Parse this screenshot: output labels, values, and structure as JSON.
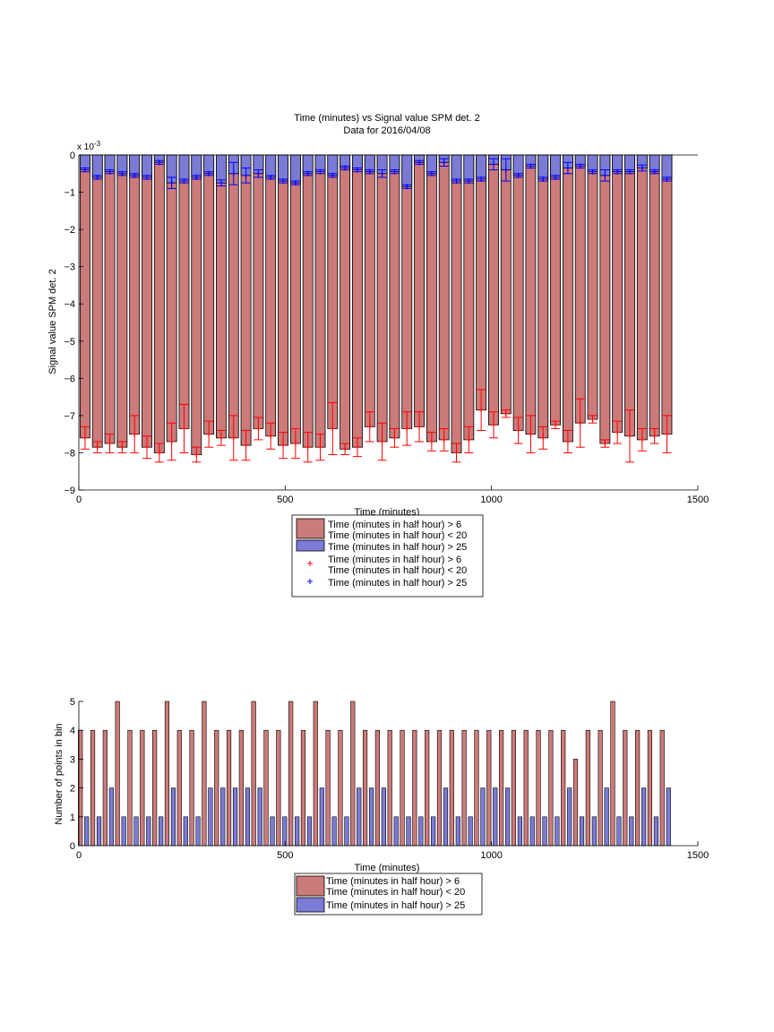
{
  "chart_data": [
    {
      "type": "bar",
      "title": "Time (minutes) vs Signal value SPM det. 2",
      "subtitle": "Data for 2016/04/08",
      "xlabel": "Time (minutes)",
      "ylabel": "Signal value SPM det. 2",
      "exponent_label": "x 10",
      "exponent_power": "-3",
      "xlim": [
        0,
        1500
      ],
      "ylim": [
        -9,
        0
      ],
      "xticks": [
        "0",
        "500",
        "1000",
        "1500"
      ],
      "yticks": [
        "0",
        "−1",
        "−2",
        "−3",
        "−4",
        "−5",
        "−6",
        "−7",
        "−8",
        "−9"
      ],
      "ytick_values": [
        0,
        -1,
        -2,
        -3,
        -4,
        -5,
        -6,
        -7,
        -8,
        -9
      ],
      "grid": false,
      "legend_position": "below",
      "x": [
        15,
        45,
        75,
        105,
        135,
        165,
        195,
        225,
        255,
        285,
        315,
        345,
        375,
        405,
        435,
        465,
        495,
        525,
        555,
        585,
        615,
        645,
        675,
        705,
        735,
        765,
        795,
        825,
        855,
        885,
        915,
        945,
        975,
        1005,
        1035,
        1065,
        1095,
        1125,
        1155,
        1185,
        1215,
        1245,
        1275,
        1305,
        1335,
        1365,
        1395,
        1425
      ],
      "series": [
        {
          "name": "Time (minutes in half hour) > 6\nTime (minutes in half hour) < 20",
          "color": "#cc7a7a",
          "marker_color": "#ff0000",
          "marker": "+",
          "values": [
            -7.6,
            -7.85,
            -7.75,
            -7.85,
            -7.5,
            -7.85,
            -8.0,
            -7.7,
            -7.35,
            -8.05,
            -7.5,
            -7.6,
            -7.6,
            -7.8,
            -7.35,
            -7.55,
            -7.8,
            -7.75,
            -7.85,
            -7.85,
            -7.35,
            -7.9,
            -7.85,
            -7.3,
            -7.7,
            -7.6,
            -7.35,
            -7.3,
            -7.7,
            -7.65,
            -8.0,
            -7.65,
            -6.85,
            -7.25,
            -6.95,
            -7.4,
            -7.5,
            -7.6,
            -7.25,
            -7.7,
            -7.2,
            -7.1,
            -7.75,
            -7.45,
            -7.55,
            -7.65,
            -7.55,
            -7.5
          ],
          "errors": [
            0.3,
            0.15,
            0.25,
            0.15,
            0.5,
            0.3,
            0.25,
            0.5,
            0.65,
            0.2,
            0.35,
            0.2,
            0.6,
            0.4,
            0.3,
            0.35,
            0.35,
            0.4,
            0.4,
            0.35,
            0.7,
            0.15,
            0.25,
            0.4,
            0.5,
            0.25,
            0.45,
            0.4,
            0.25,
            0.3,
            0.25,
            0.35,
            0.55,
            0.35,
            0.1,
            0.35,
            0.5,
            0.3,
            0.1,
            0.3,
            0.65,
            0.1,
            0.1,
            0.3,
            0.7,
            0.3,
            0.2,
            0.5
          ]
        },
        {
          "name": "Time (minutes in half hour) > 25",
          "color": "#7b7bd6",
          "marker_color": "#0000ff",
          "marker": "+",
          "values": [
            -0.4,
            -0.6,
            -0.45,
            -0.5,
            -0.55,
            -0.6,
            -0.2,
            -0.75,
            -0.7,
            -0.6,
            -0.5,
            -0.75,
            -0.5,
            -0.55,
            -0.5,
            -0.6,
            -0.7,
            -0.75,
            -0.5,
            -0.45,
            -0.55,
            -0.35,
            -0.4,
            -0.45,
            -0.5,
            -0.45,
            -0.85,
            -0.2,
            -0.5,
            -0.2,
            -0.7,
            -0.7,
            -0.65,
            -0.25,
            -0.4,
            -0.55,
            -0.3,
            -0.65,
            -0.6,
            -0.35,
            -0.3,
            -0.45,
            -0.55,
            -0.45,
            -0.45,
            -0.35,
            -0.45,
            -0.65
          ],
          "errors": [
            0.05,
            0.05,
            0.05,
            0.05,
            0.05,
            0.05,
            0.05,
            0.15,
            0.05,
            0.05,
            0.05,
            0.08,
            0.3,
            0.2,
            0.1,
            0.05,
            0.05,
            0.05,
            0.05,
            0.05,
            0.05,
            0.05,
            0.05,
            0.05,
            0.1,
            0.05,
            0.05,
            0.05,
            0.05,
            0.1,
            0.05,
            0.05,
            0.05,
            0.15,
            0.3,
            0.05,
            0.05,
            0.05,
            0.05,
            0.15,
            0.05,
            0.05,
            0.15,
            0.05,
            0.05,
            0.08,
            0.05,
            0.05
          ]
        }
      ],
      "legend": [
        {
          "swatch": "bar",
          "color": "#cc7a7a",
          "lines": [
            "Time (minutes in half hour) > 6",
            "Time (minutes in half hour) < 20"
          ]
        },
        {
          "swatch": "bar",
          "color": "#7b7bd6",
          "lines": [
            "Time (minutes in half hour) > 25"
          ]
        },
        {
          "swatch": "marker",
          "color": "#ff0000",
          "lines": [
            "Time (minutes in half hour) > 6",
            "Time (minutes in half hour) < 20"
          ]
        },
        {
          "swatch": "marker",
          "color": "#0000ff",
          "lines": [
            "Time (minutes in half hour) > 25"
          ]
        }
      ]
    },
    {
      "type": "bar",
      "xlabel": "Time (minutes)",
      "ylabel": "Number of points in bin",
      "xlim": [
        0,
        1500
      ],
      "ylim": [
        0,
        5
      ],
      "xticks": [
        "0",
        "500",
        "1000",
        "1500"
      ],
      "yticks": [
        "0",
        "1",
        "2",
        "3",
        "4",
        "5"
      ],
      "ytick_values": [
        0,
        1,
        2,
        3,
        4,
        5
      ],
      "grid": false,
      "legend_position": "below",
      "x": [
        15,
        45,
        75,
        105,
        135,
        165,
        195,
        225,
        255,
        285,
        315,
        345,
        375,
        405,
        435,
        465,
        495,
        525,
        555,
        585,
        615,
        645,
        675,
        705,
        735,
        765,
        795,
        825,
        855,
        885,
        915,
        945,
        975,
        1005,
        1035,
        1065,
        1095,
        1125,
        1155,
        1185,
        1215,
        1245,
        1275,
        1305,
        1335,
        1365,
        1395,
        1425
      ],
      "series": [
        {
          "name": "Time (minutes in half hour) > 6\nTime (minutes in half hour) < 20",
          "color": "#cc7a7a",
          "values": [
            4,
            4,
            4,
            5,
            4,
            4,
            4,
            5,
            4,
            4,
            5,
            4,
            4,
            4,
            5,
            4,
            4,
            5,
            4,
            5,
            4,
            4,
            5,
            4,
            4,
            4,
            4,
            4,
            4,
            4,
            4,
            4,
            4,
            4,
            4,
            4,
            4,
            4,
            4,
            4,
            3,
            4,
            4,
            5,
            4,
            4,
            4,
            4
          ]
        },
        {
          "name": "Time (minutes in half hour) > 25",
          "color": "#7b7bd6",
          "values": [
            1,
            1,
            2,
            1,
            1,
            1,
            1,
            2,
            1,
            1,
            2,
            2,
            2,
            2,
            2,
            1,
            1,
            1,
            1,
            2,
            1,
            1,
            2,
            2,
            2,
            1,
            1,
            1,
            1,
            2,
            1,
            1,
            2,
            2,
            2,
            1,
            1,
            1,
            1,
            2,
            1,
            1,
            2,
            1,
            1,
            2,
            1,
            2
          ]
        }
      ],
      "legend": [
        {
          "swatch": "bar",
          "color": "#cc7a7a",
          "lines": [
            "Time (minutes in half hour) > 6",
            "Time (minutes in half hour) < 20"
          ]
        },
        {
          "swatch": "bar",
          "color": "#7b7bd6",
          "lines": [
            "Time (minutes in half hour) > 25"
          ]
        }
      ]
    }
  ]
}
